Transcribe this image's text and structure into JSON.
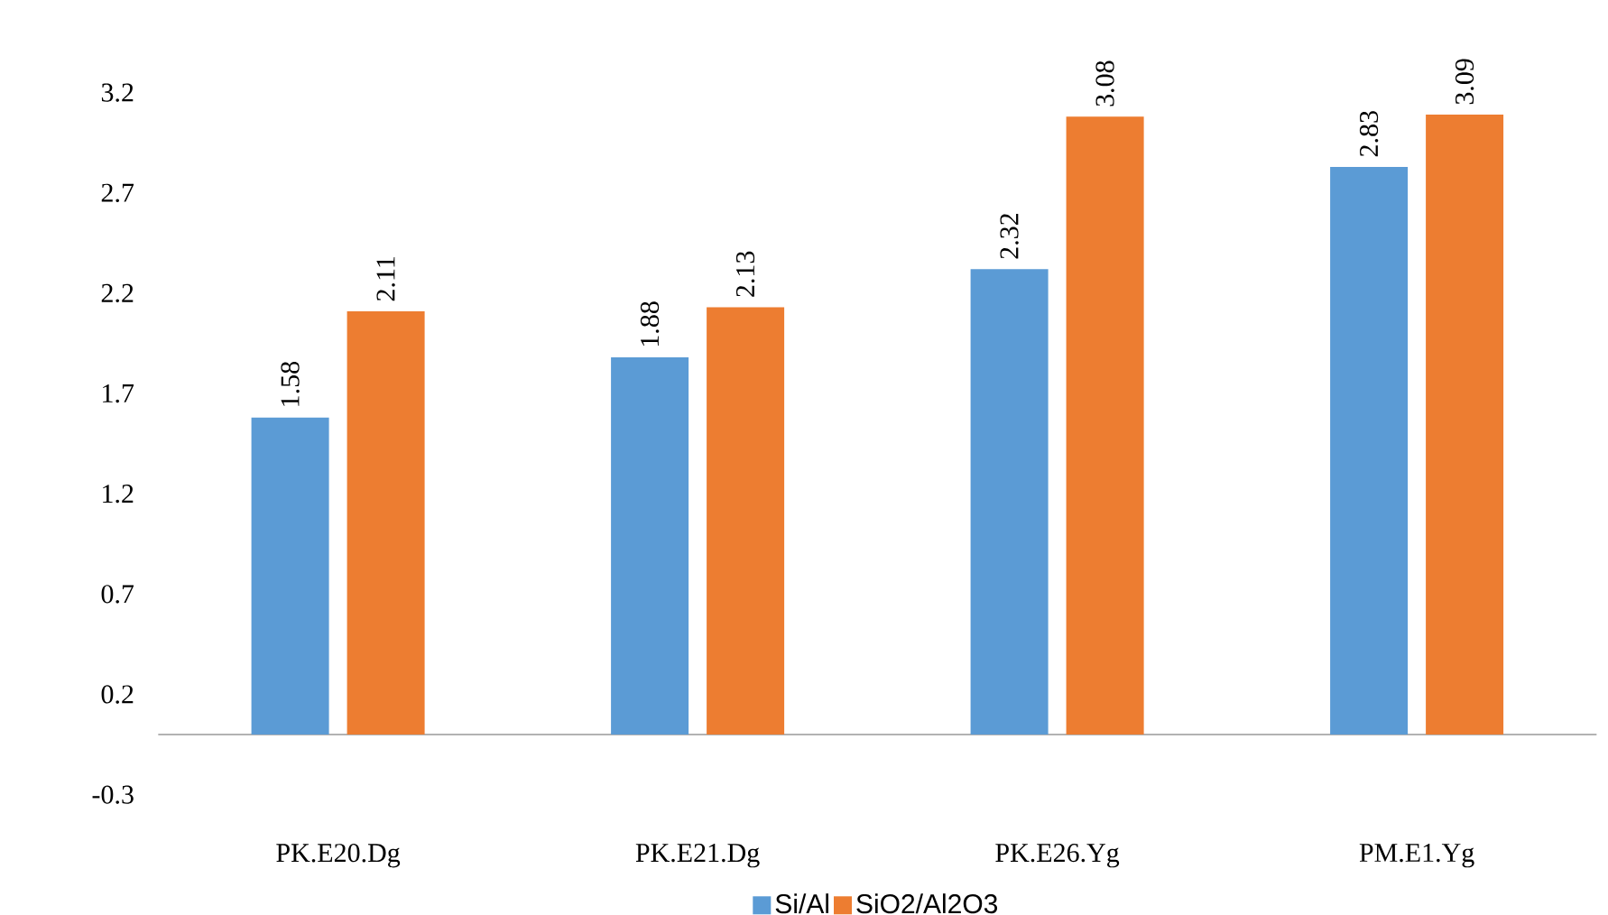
{
  "chart_data": {
    "type": "bar",
    "categories": [
      "PK.E20.Dg",
      "PK.E21.Dg",
      "PK.E26.Yg",
      "PM.E1.Yg"
    ],
    "series": [
      {
        "name": "Si/Al",
        "color": "#5b9bd5",
        "values": [
          1.58,
          1.88,
          2.32,
          2.83
        ]
      },
      {
        "name": "SiO2/Al2O3",
        "color": "#ed7d31",
        "values": [
          2.11,
          2.13,
          3.08,
          3.09
        ]
      }
    ],
    "ylim": [
      -0.3,
      3.2
    ],
    "yticks": [
      -0.3,
      0.2,
      0.7,
      1.2,
      1.7,
      2.2,
      2.7,
      3.2
    ],
    "data_labels": true,
    "legend": "bottom",
    "grid": false
  }
}
